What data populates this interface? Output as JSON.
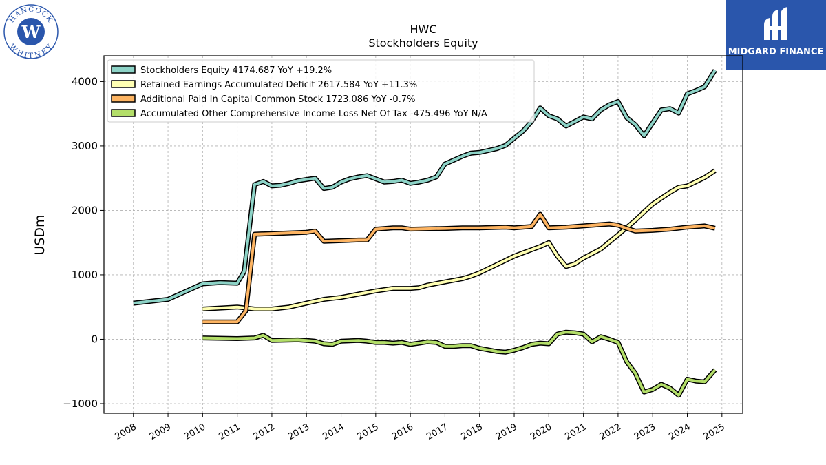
{
  "logos": {
    "left_name": "HANCOCK WHITNEY",
    "right_name": "MIDGARD FINANCE"
  },
  "chart_data": {
    "type": "line",
    "title": "HWC",
    "subtitle": "Stockholders  Equity",
    "ylabel": "USDm",
    "xlabel": "",
    "ylim": [
      -1150,
      4400
    ],
    "xlim": [
      2007.15,
      2025.6
    ],
    "yticks": [
      -1000,
      0,
      1000,
      2000,
      3000,
      4000
    ],
    "ytick_labels": [
      "−1000",
      "0",
      "1000",
      "2000",
      "3000",
      "4000"
    ],
    "xticks": [
      2008,
      2009,
      2010,
      2011,
      2012,
      2013,
      2014,
      2015,
      2016,
      2017,
      2018,
      2019,
      2020,
      2021,
      2022,
      2023,
      2024,
      2025
    ],
    "xtick_labels": [
      "2008",
      "2009",
      "2010",
      "2011",
      "2012",
      "2013",
      "2014",
      "2015",
      "2016",
      "2017",
      "2018",
      "2019",
      "2020",
      "2021",
      "2022",
      "2023",
      "2024",
      "2025"
    ],
    "grid": true,
    "legend_position": "top-left",
    "series": [
      {
        "name": "Stockholders Equity",
        "legend_label": "Stockholders Equity  4174.687 YoY +19.2%",
        "color": "#8dd3c7",
        "x": [
          2008.0,
          2009.0,
          2010.0,
          2010.5,
          2011.0,
          2011.2,
          2011.5,
          2011.75,
          2012.0,
          2012.25,
          2012.5,
          2012.75,
          2013.0,
          2013.25,
          2013.5,
          2013.75,
          2014.0,
          2014.25,
          2014.5,
          2014.75,
          2015.0,
          2015.25,
          2015.5,
          2015.75,
          2016.0,
          2016.25,
          2016.5,
          2016.75,
          2017.0,
          2017.25,
          2017.5,
          2017.75,
          2018.0,
          2018.25,
          2018.5,
          2018.75,
          2019.0,
          2019.25,
          2019.5,
          2019.75,
          2020.0,
          2020.25,
          2020.5,
          2020.75,
          2021.0,
          2021.25,
          2021.5,
          2021.75,
          2022.0,
          2022.25,
          2022.5,
          2022.75,
          2023.0,
          2023.25,
          2023.5,
          2023.75,
          2024.0,
          2024.25,
          2024.5,
          2024.8
        ],
        "y": [
          560,
          620,
          860,
          880,
          870,
          1050,
          2400,
          2450,
          2380,
          2390,
          2420,
          2460,
          2480,
          2500,
          2340,
          2360,
          2440,
          2490,
          2520,
          2540,
          2490,
          2440,
          2450,
          2470,
          2420,
          2440,
          2470,
          2520,
          2720,
          2780,
          2840,
          2890,
          2900,
          2930,
          2960,
          3010,
          3120,
          3230,
          3380,
          3590,
          3470,
          3420,
          3310,
          3380,
          3450,
          3420,
          3560,
          3640,
          3690,
          3440,
          3330,
          3160,
          3360,
          3560,
          3580,
          3510,
          3810,
          3860,
          3920,
          4175
        ]
      },
      {
        "name": "Retained Earnings Accumulated Deficit",
        "legend_label": "Retained Earnings Accumulated Deficit  2617.584 YoY +11.3%",
        "color": "#ffffb3",
        "x": [
          2010.0,
          2011.0,
          2011.5,
          2012.0,
          2012.5,
          2013.0,
          2013.5,
          2014.0,
          2014.5,
          2015.0,
          2015.5,
          2016.0,
          2016.25,
          2016.5,
          2017.0,
          2017.5,
          2017.75,
          2018.0,
          2018.5,
          2019.0,
          2019.5,
          2019.75,
          2020.0,
          2020.25,
          2020.5,
          2020.75,
          2021.0,
          2021.5,
          2022.0,
          2022.5,
          2023.0,
          2023.5,
          2023.75,
          2024.0,
          2024.5,
          2024.8
        ],
        "y": [
          470,
          500,
          470,
          470,
          500,
          560,
          620,
          650,
          700,
          750,
          790,
          790,
          800,
          840,
          890,
          940,
          980,
          1030,
          1160,
          1290,
          1390,
          1440,
          1500,
          1290,
          1130,
          1170,
          1260,
          1400,
          1620,
          1850,
          2100,
          2280,
          2360,
          2380,
          2510,
          2618
        ]
      },
      {
        "name": "Additional Paid In Capital Common Stock",
        "legend_label": "Additional Paid In Capital Common Stock  1723.086 YoY -0.7%",
        "color": "#fdb462",
        "x": [
          2010.0,
          2011.0,
          2011.25,
          2011.5,
          2012.0,
          2013.0,
          2013.25,
          2013.5,
          2014.0,
          2014.5,
          2014.75,
          2015.0,
          2015.5,
          2015.75,
          2016.0,
          2017.0,
          2017.5,
          2018.0,
          2018.75,
          2019.0,
          2019.5,
          2019.75,
          2020.0,
          2020.5,
          2021.0,
          2021.5,
          2021.75,
          2022.0,
          2022.25,
          2022.5,
          2023.0,
          2023.5,
          2024.0,
          2024.5,
          2024.8
        ],
        "y": [
          270,
          270,
          440,
          1630,
          1640,
          1660,
          1680,
          1520,
          1530,
          1540,
          1540,
          1710,
          1730,
          1730,
          1710,
          1720,
          1730,
          1730,
          1740,
          1730,
          1750,
          1940,
          1730,
          1740,
          1760,
          1780,
          1790,
          1770,
          1720,
          1680,
          1690,
          1710,
          1740,
          1760,
          1723
        ]
      },
      {
        "name": "Accumulated Other Comprehensive Income Loss Net Of Tax",
        "legend_label": "Accumulated Other Comprehensive Income Loss Net Of Tax  -475.496 YoY N/A",
        "color": "#b3de69",
        "x": [
          2010.0,
          2011.0,
          2011.5,
          2011.75,
          2012.0,
          2012.75,
          2013.0,
          2013.25,
          2013.5,
          2013.75,
          2014.0,
          2014.5,
          2014.75,
          2015.0,
          2015.25,
          2015.5,
          2015.75,
          2016.0,
          2016.25,
          2016.5,
          2016.75,
          2017.0,
          2017.25,
          2017.5,
          2017.75,
          2018.0,
          2018.5,
          2018.75,
          2019.0,
          2019.25,
          2019.5,
          2019.75,
          2020.0,
          2020.25,
          2020.5,
          2020.75,
          2021.0,
          2021.25,
          2021.5,
          2021.75,
          2022.0,
          2022.25,
          2022.5,
          2022.75,
          2023.0,
          2023.25,
          2023.5,
          2023.75,
          2024.0,
          2024.25,
          2024.5,
          2024.8
        ],
        "y": [
          20,
          10,
          20,
          60,
          -20,
          -10,
          -20,
          -30,
          -70,
          -80,
          -30,
          -20,
          -30,
          -50,
          -50,
          -60,
          -50,
          -80,
          -60,
          -40,
          -50,
          -110,
          -110,
          -100,
          -100,
          -140,
          -190,
          -200,
          -170,
          -130,
          -80,
          -60,
          -70,
          80,
          110,
          100,
          80,
          -40,
          40,
          0,
          -50,
          -350,
          -530,
          -820,
          -780,
          -700,
          -760,
          -870,
          -620,
          -650,
          -660,
          -475
        ]
      }
    ]
  }
}
